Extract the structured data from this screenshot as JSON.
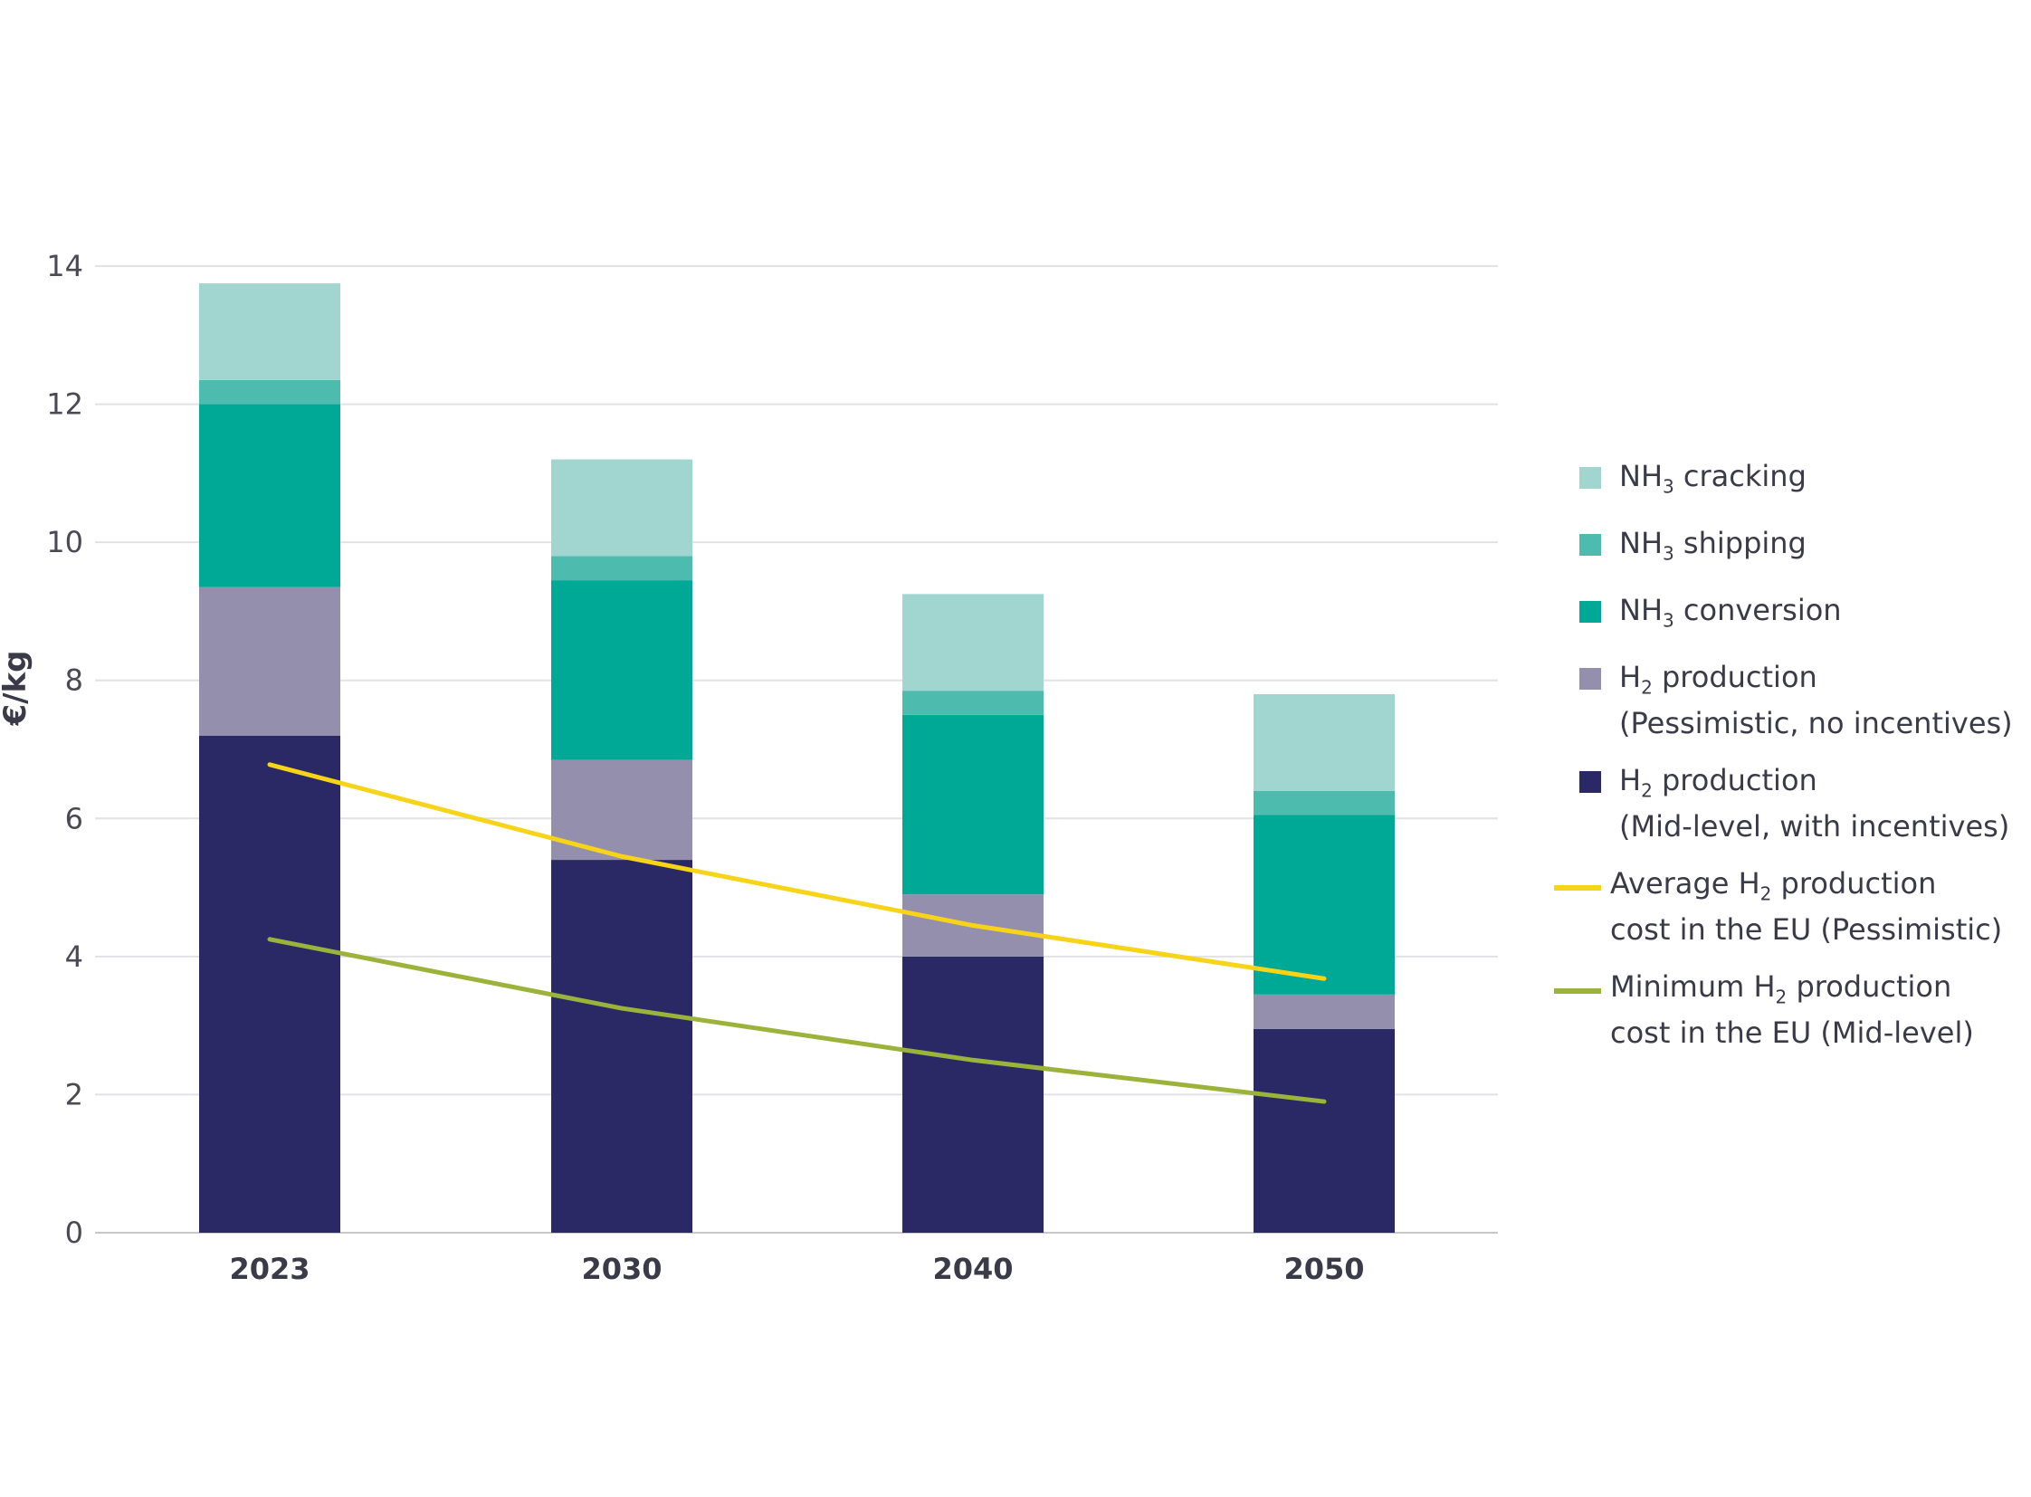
{
  "chart_data": {
    "type": "bar",
    "stacked": true,
    "categories": [
      "2023",
      "2030",
      "2040",
      "2050"
    ],
    "ylabel": "€/kg",
    "ylim": [
      0,
      14
    ],
    "yticks": [
      "0",
      "2",
      "4",
      "6",
      "8",
      "10",
      "12",
      "14"
    ],
    "grid": true,
    "legend_position": "right",
    "series": [
      {
        "key": "h2_mid",
        "legend_prefix": "H",
        "legend_sub": "2",
        "legend_suffix": " production",
        "legend_line2": "(Mid-level, with incentives)",
        "color": "#2a2966",
        "values": [
          7.2,
          5.4,
          4.0,
          2.95
        ]
      },
      {
        "key": "h2_pess",
        "legend_prefix": "H",
        "legend_sub": "2",
        "legend_suffix": " production",
        "legend_line2": "(Pessimistic, no incentives)",
        "color": "#958fae",
        "values": [
          2.15,
          1.45,
          0.9,
          0.5
        ]
      },
      {
        "key": "nh3_conv",
        "legend_prefix": "NH",
        "legend_sub": "3",
        "legend_suffix": " conversion",
        "legend_line2": "",
        "color": "#00a896",
        "values": [
          2.65,
          2.6,
          2.6,
          2.6
        ]
      },
      {
        "key": "nh3_ship",
        "legend_prefix": "NH",
        "legend_sub": "3",
        "legend_suffix": " shipping",
        "legend_line2": "",
        "color": "#4dbbae",
        "values": [
          0.35,
          0.35,
          0.35,
          0.35
        ]
      },
      {
        "key": "nh3_crack",
        "legend_prefix": "NH",
        "legend_sub": "3",
        "legend_suffix": " cracking",
        "legend_line2": "",
        "color": "#a0d6cf",
        "values": [
          1.4,
          1.4,
          1.4,
          1.4
        ]
      }
    ],
    "lines": [
      {
        "key": "avg_pess",
        "legend_prefix": "Average H",
        "legend_sub": "2",
        "legend_suffix": " production",
        "legend_line2": "cost in the EU (Pessimistic)",
        "color": "#f7d417",
        "values": [
          6.78,
          5.45,
          4.45,
          3.68
        ]
      },
      {
        "key": "min_mid",
        "legend_prefix": "Minimum H",
        "legend_sub": "2",
        "legend_suffix": " production",
        "legend_line2": "cost in the EU (Mid-level)",
        "color": "#9bb33a",
        "values": [
          4.25,
          3.25,
          2.5,
          1.9
        ]
      }
    ]
  }
}
